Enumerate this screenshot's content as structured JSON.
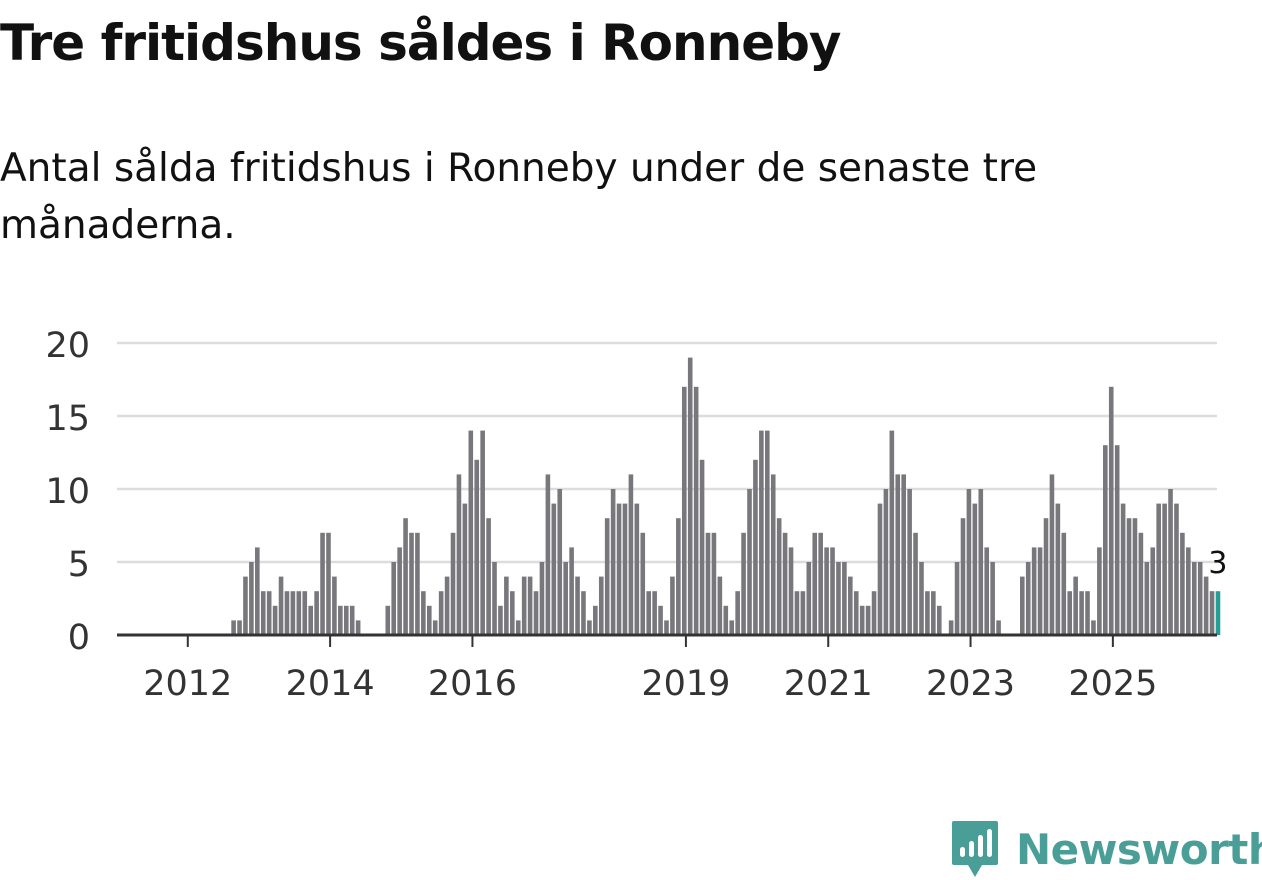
{
  "header": {
    "title": "Tre fritidshus såldes i Ronneby",
    "subtitle": "Antal sålda fritidshus i Ronneby under de senaste tre månaderna."
  },
  "chart_data": {
    "type": "bar",
    "title": "Tre fritidshus såldes i Ronneby",
    "subtitle": "Antal sålda fritidshus i Ronneby under de senaste tre månaderna.",
    "xlabel": "",
    "ylabel": "",
    "ylim": [
      0,
      20
    ],
    "y_ticks": [
      "0",
      "5",
      "10",
      "15",
      "20"
    ],
    "x_ticks": [
      {
        "label": "2012",
        "index": 3
      },
      {
        "label": "2014",
        "index": 27
      },
      {
        "label": "2016",
        "index": 51
      },
      {
        "label": "2019",
        "index": 87
      },
      {
        "label": "2021",
        "index": 111
      },
      {
        "label": "2023",
        "index": 135
      },
      {
        "label": "2025",
        "index": 159
      }
    ],
    "grid": true,
    "values": [
      0,
      0,
      0,
      0,
      0,
      0,
      0,
      0,
      0,
      0,
      1,
      1,
      4,
      5,
      6,
      3,
      3,
      2,
      4,
      3,
      3,
      3,
      3,
      2,
      3,
      7,
      7,
      4,
      2,
      2,
      2,
      1,
      0,
      0,
      0,
      0,
      2,
      5,
      6,
      8,
      7,
      7,
      3,
      2,
      1,
      3,
      4,
      7,
      11,
      9,
      14,
      12,
      14,
      8,
      5,
      2,
      4,
      3,
      1,
      4,
      4,
      3,
      5,
      11,
      9,
      10,
      5,
      6,
      4,
      3,
      1,
      2,
      4,
      8,
      10,
      9,
      9,
      11,
      9,
      7,
      3,
      3,
      2,
      1,
      4,
      8,
      17,
      19,
      17,
      12,
      7,
      7,
      4,
      2,
      1,
      3,
      7,
      10,
      12,
      14,
      14,
      11,
      8,
      7,
      6,
      3,
      3,
      5,
      7,
      7,
      6,
      6,
      5,
      5,
      4,
      3,
      2,
      2,
      3,
      9,
      10,
      14,
      11,
      11,
      10,
      7,
      5,
      3,
      3,
      2,
      0,
      1,
      5,
      8,
      10,
      9,
      10,
      6,
      5,
      1,
      0,
      0,
      0,
      4,
      5,
      6,
      6,
      8,
      11,
      9,
      7,
      3,
      4,
      3,
      3,
      1,
      6,
      13,
      17,
      13,
      9,
      8,
      8,
      7,
      5,
      6,
      9,
      9,
      10,
      9,
      7,
      6,
      5,
      5,
      4,
      3,
      3
    ],
    "highlight": {
      "index": 176,
      "value": 3,
      "label": "3"
    },
    "colors": {
      "bar": "#78777c",
      "highlight": "#269e98",
      "grid": "#dcdcdc",
      "axis": "#333333",
      "tick_text": "#333333"
    }
  },
  "branding": {
    "name": "Newsworthy",
    "icon": "newsworthy-logo-icon",
    "color": "#4a9e98"
  }
}
